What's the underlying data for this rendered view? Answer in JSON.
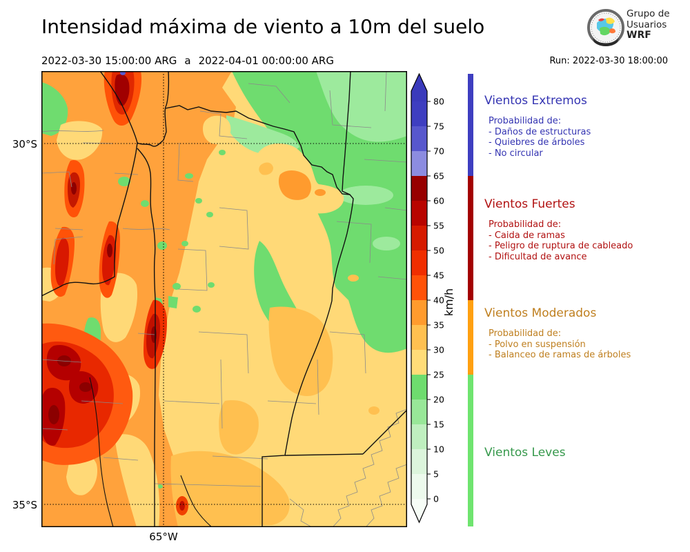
{
  "header": {
    "title": "Intensidad máxima de viento a 10m del suelo",
    "period": {
      "from": "2022-03-30 15:00:00 ARG",
      "separator": "a",
      "to": "2022-04-01 00:00:00 ARG"
    },
    "run": "Run: 2022-03-30 18:00:00",
    "logo_lines": [
      "Grupo de",
      "Usuarios",
      "WRF"
    ]
  },
  "map": {
    "lat_labels": [
      "30°S",
      "35°S"
    ],
    "lon_labels": [
      "65°W"
    ]
  },
  "colorbar": {
    "unit": "km/h",
    "tick_values": [
      0,
      5,
      10,
      15,
      20,
      25,
      30,
      35,
      40,
      45,
      50,
      55,
      60,
      65,
      70,
      75,
      80
    ],
    "segments": [
      {
        "from": 0,
        "to": 5,
        "color": "#edfaed"
      },
      {
        "from": 5,
        "to": 10,
        "color": "#dcf5dc"
      },
      {
        "from": 10,
        "to": 15,
        "color": "#bfefbf"
      },
      {
        "from": 15,
        "to": 20,
        "color": "#98e798"
      },
      {
        "from": 20,
        "to": 25,
        "color": "#6edc6e"
      },
      {
        "from": 25,
        "to": 30,
        "color": "#ffdc78"
      },
      {
        "from": 30,
        "to": 35,
        "color": "#ffc050"
      },
      {
        "from": 35,
        "to": 40,
        "color": "#ff9b2e"
      },
      {
        "from": 40,
        "to": 45,
        "color": "#ff5208"
      },
      {
        "from": 45,
        "to": 50,
        "color": "#f02e00"
      },
      {
        "from": 50,
        "to": 55,
        "color": "#d61a00"
      },
      {
        "from": 55,
        "to": 60,
        "color": "#b80400"
      },
      {
        "from": 60,
        "to": 65,
        "color": "#970000"
      },
      {
        "from": 65,
        "to": 70,
        "color": "#8c8ce0"
      },
      {
        "from": 70,
        "to": 75,
        "color": "#5757cd"
      },
      {
        "from": 75,
        "to": 80,
        "color": "#3e3ec0"
      }
    ],
    "under_color": "#f7fdf7",
    "over_color": "#3a3abb"
  },
  "legend": {
    "categories": [
      {
        "name": "Vientos Extremos",
        "text_color": "#3434b2",
        "bar_color": "#3e3ec0",
        "range_kmh": {
          "min": 65,
          "max": null
        },
        "subtitle": "Probabilidad de:",
        "items": [
          "- Daños de estructuras",
          "- Quiebres de árboles",
          "- No circular"
        ]
      },
      {
        "name": "Vientos Fuertes",
        "text_color": "#b11111",
        "bar_color": "#a30000",
        "range_kmh": {
          "min": 40,
          "max": 65
        },
        "subtitle": "Probabilidad de:",
        "items": [
          "- Caida de ramas",
          "- Peligro de ruptura de cableado",
          "- Dificultad de avance"
        ]
      },
      {
        "name": "Vientos Moderados",
        "text_color": "#bf7f1f",
        "bar_color": "#ffa010",
        "range_kmh": {
          "min": 25,
          "max": 40
        },
        "subtitle": "Probabilidad de:",
        "items": [
          "- Polvo en suspensión",
          "- Balanceo de ramas de árboles"
        ]
      },
      {
        "name": "Vientos Leves",
        "text_color": "#35984b",
        "bar_color": "#6fe46f",
        "range_kmh": {
          "min": 0,
          "max": 25
        },
        "subtitle": "",
        "items": []
      }
    ]
  }
}
